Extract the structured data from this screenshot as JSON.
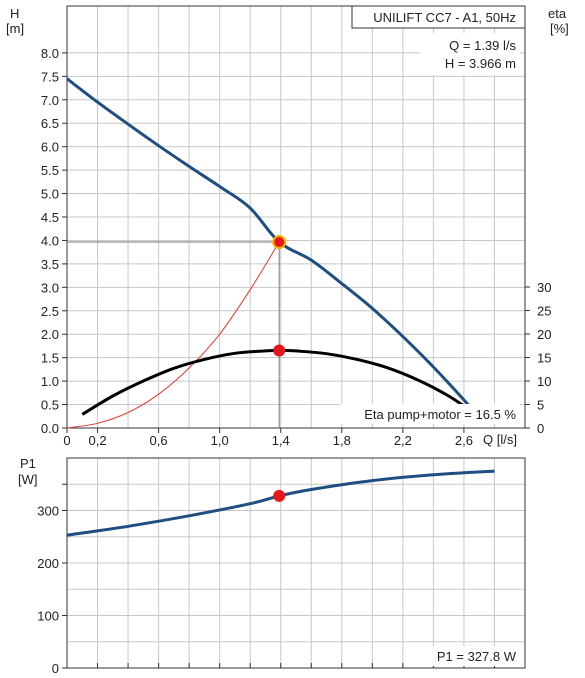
{
  "colors": {
    "head_curve": "#1f4f82",
    "eta_curve": "#000000",
    "system_curve": "#e53935",
    "power_curve": "#1f4f82",
    "operating_point": "#e8151b",
    "operating_ring": "#f0b400",
    "grid": "#c8c8c8"
  },
  "chart_data": [
    {
      "type": "line",
      "title": "UNILIFT CC7 - A1, 50Hz",
      "ylabel_top": "H",
      "ylabel_bottom": "[m]",
      "y2label_top": "eta",
      "y2label_bottom": "[%]",
      "xlabel": "Q [l/s]",
      "xlim": [
        0,
        3.0
      ],
      "ylim": [
        0,
        9.0
      ],
      "y2lim": [
        0,
        30
      ],
      "x_ticks": [
        "0",
        "0,2",
        "0,6",
        "1,0",
        "1,4",
        "1,8",
        "2,2",
        "2,6"
      ],
      "x_tick_values": [
        0,
        0.2,
        0.6,
        1.0,
        1.4,
        1.8,
        2.2,
        2.6
      ],
      "y_ticks": [
        "0.0",
        "0.5",
        "1.0",
        "1.5",
        "2.0",
        "2.5",
        "3.0",
        "3.5",
        "4.0",
        "4.5",
        "5.0",
        "5.5",
        "6.0",
        "6.5",
        "7.0",
        "7.5",
        "8.0"
      ],
      "y2_ticks": [
        "0",
        "5",
        "10",
        "15",
        "20",
        "25",
        "30"
      ],
      "operating_point_text": [
        "Q = 1.39 l/s",
        "H = 3.966 m"
      ],
      "eta_text": "Eta pump+motor = 16.5 %",
      "operating_point": {
        "q": 1.39,
        "h": 3.966,
        "eta": 16.5
      },
      "series": [
        {
          "id": "head",
          "x": [
            0,
            0.2,
            0.4,
            0.6,
            0.8,
            1.0,
            1.2,
            1.39,
            1.6,
            1.8,
            2.0,
            2.2,
            2.4,
            2.6,
            2.72
          ],
          "y": [
            7.45,
            6.95,
            6.48,
            6.02,
            5.58,
            5.15,
            4.69,
            3.966,
            3.58,
            3.08,
            2.55,
            1.95,
            1.3,
            0.6,
            0.15
          ]
        },
        {
          "id": "eta",
          "axis": "y2",
          "x": [
            0.1,
            0.3,
            0.5,
            0.7,
            0.9,
            1.1,
            1.3,
            1.39,
            1.5,
            1.7,
            1.9,
            2.1,
            2.3,
            2.5,
            2.7
          ],
          "y": [
            2.9,
            6.8,
            10.0,
            12.7,
            14.6,
            15.9,
            16.4,
            16.5,
            16.4,
            15.8,
            14.6,
            12.8,
            10.2,
            6.8,
            2.5
          ]
        },
        {
          "id": "system",
          "x": [
            0,
            0.2,
            0.4,
            0.6,
            0.8,
            1.0,
            1.2,
            1.39
          ],
          "y": [
            0,
            0.1,
            0.33,
            0.72,
            1.28,
            2.0,
            2.95,
            3.966
          ]
        }
      ]
    },
    {
      "type": "line",
      "ylabel_top": "P1",
      "ylabel_bottom": "[W]",
      "xlim": [
        0,
        3.0
      ],
      "ylim": [
        0,
        400
      ],
      "y_ticks": [
        "0",
        "100",
        "200",
        "300"
      ],
      "y_tick_values": [
        0,
        100,
        200,
        300
      ],
      "power_text": "P1 = 327.8 W",
      "operating_point": {
        "q": 1.39,
        "p1": 327.8
      },
      "series": [
        {
          "id": "p1",
          "x": [
            0,
            0.4,
            0.8,
            1.2,
            1.39,
            1.6,
            2.0,
            2.4,
            2.8
          ],
          "y": [
            253,
            270,
            290,
            313,
            327.8,
            340,
            357,
            368,
            375
          ]
        }
      ]
    }
  ]
}
